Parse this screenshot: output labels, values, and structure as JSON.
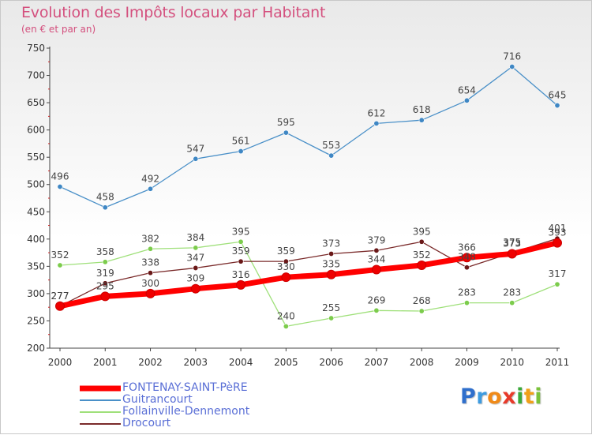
{
  "chart_data": {
    "type": "line",
    "title": "Evolution des Impôts locaux par Habitant",
    "subtitle": "(en € et par an)",
    "x": [
      "2000",
      "2001",
      "2002",
      "2003",
      "2004",
      "2005",
      "2006",
      "2007",
      "2008",
      "2009",
      "2010",
      "2011"
    ],
    "ylim": [
      200,
      750
    ],
    "yticks": [
      200,
      250,
      300,
      350,
      400,
      450,
      500,
      550,
      600,
      650,
      700,
      750
    ],
    "grid": false,
    "legend_position": "bottom-left",
    "series": [
      {
        "name": "Guitrancourt",
        "color": "#4a90c8",
        "marker": "#3f87c4",
        "width": 1.3,
        "values": [
          496,
          458,
          492,
          547,
          561,
          595,
          553,
          612,
          618,
          654,
          716,
          645
        ]
      },
      {
        "name": "Follainville-Dennemont",
        "color": "#9fe07a",
        "marker": "#7ccc4c",
        "width": 1.3,
        "values": [
          352,
          358,
          382,
          384,
          395,
          240,
          255,
          269,
          268,
          283,
          283,
          317
        ]
      },
      {
        "name": "Drocourt",
        "color": "#7a2a2a",
        "marker": "#6a1818",
        "width": 1.3,
        "values": [
          277,
          319,
          338,
          347,
          359,
          359,
          373,
          379,
          395,
          348,
          375,
          401
        ]
      },
      {
        "name": "FONTENAY-SAINT-PèRE",
        "color": "#ff0000",
        "marker": "#ee0000",
        "width": 7,
        "values": [
          277,
          295,
          300,
          309,
          316,
          330,
          335,
          344,
          352,
          366,
          373,
          393
        ]
      }
    ],
    "point_labels": [
      {
        "series": "Guitrancourt",
        "labels": [
          "496",
          "458",
          "492",
          "547",
          "561",
          "595",
          "553",
          "612",
          "618",
          "654",
          "716",
          "645"
        ]
      },
      {
        "series": "Follainville-Dennemont",
        "labels": [
          "352",
          "358",
          "382",
          "384",
          "395",
          "240",
          "255",
          "269",
          "268",
          "283",
          "283",
          "317"
        ]
      },
      {
        "series": "Drocourt",
        "labels": [
          "277",
          "319",
          "338",
          "347",
          "359",
          "359",
          "373",
          "379",
          "395",
          "348",
          "375",
          "401"
        ]
      },
      {
        "series": "FONTENAY-SAINT-PèRE",
        "labels": [
          "277",
          "295",
          "300",
          "309",
          "316",
          "330",
          "335",
          "344",
          "352",
          "366",
          "373",
          "393"
        ]
      }
    ]
  },
  "legend": {
    "items": [
      {
        "label": "FONTENAY-SAINT-PèRE",
        "color": "#ff0000",
        "thickness": 7
      },
      {
        "label": "Guitrancourt",
        "color": "#4a90c8",
        "thickness": 2
      },
      {
        "label": "Follainville-Dennemont",
        "color": "#9fe07a",
        "thickness": 2
      },
      {
        "label": "Drocourt",
        "color": "#7a2a2a",
        "thickness": 2
      }
    ]
  },
  "brand": {
    "letters": [
      {
        "ch": "P",
        "color": "#2f6fcc"
      },
      {
        "ch": "r",
        "color": "#3d9be0"
      },
      {
        "ch": "o",
        "color": "#f08a18"
      },
      {
        "ch": "x",
        "color": "#e83a2a"
      },
      {
        "ch": "i",
        "color": "#3aa83a"
      },
      {
        "ch": "t",
        "color": "#f0a018"
      },
      {
        "ch": "i",
        "color": "#7ac23a"
      }
    ]
  }
}
